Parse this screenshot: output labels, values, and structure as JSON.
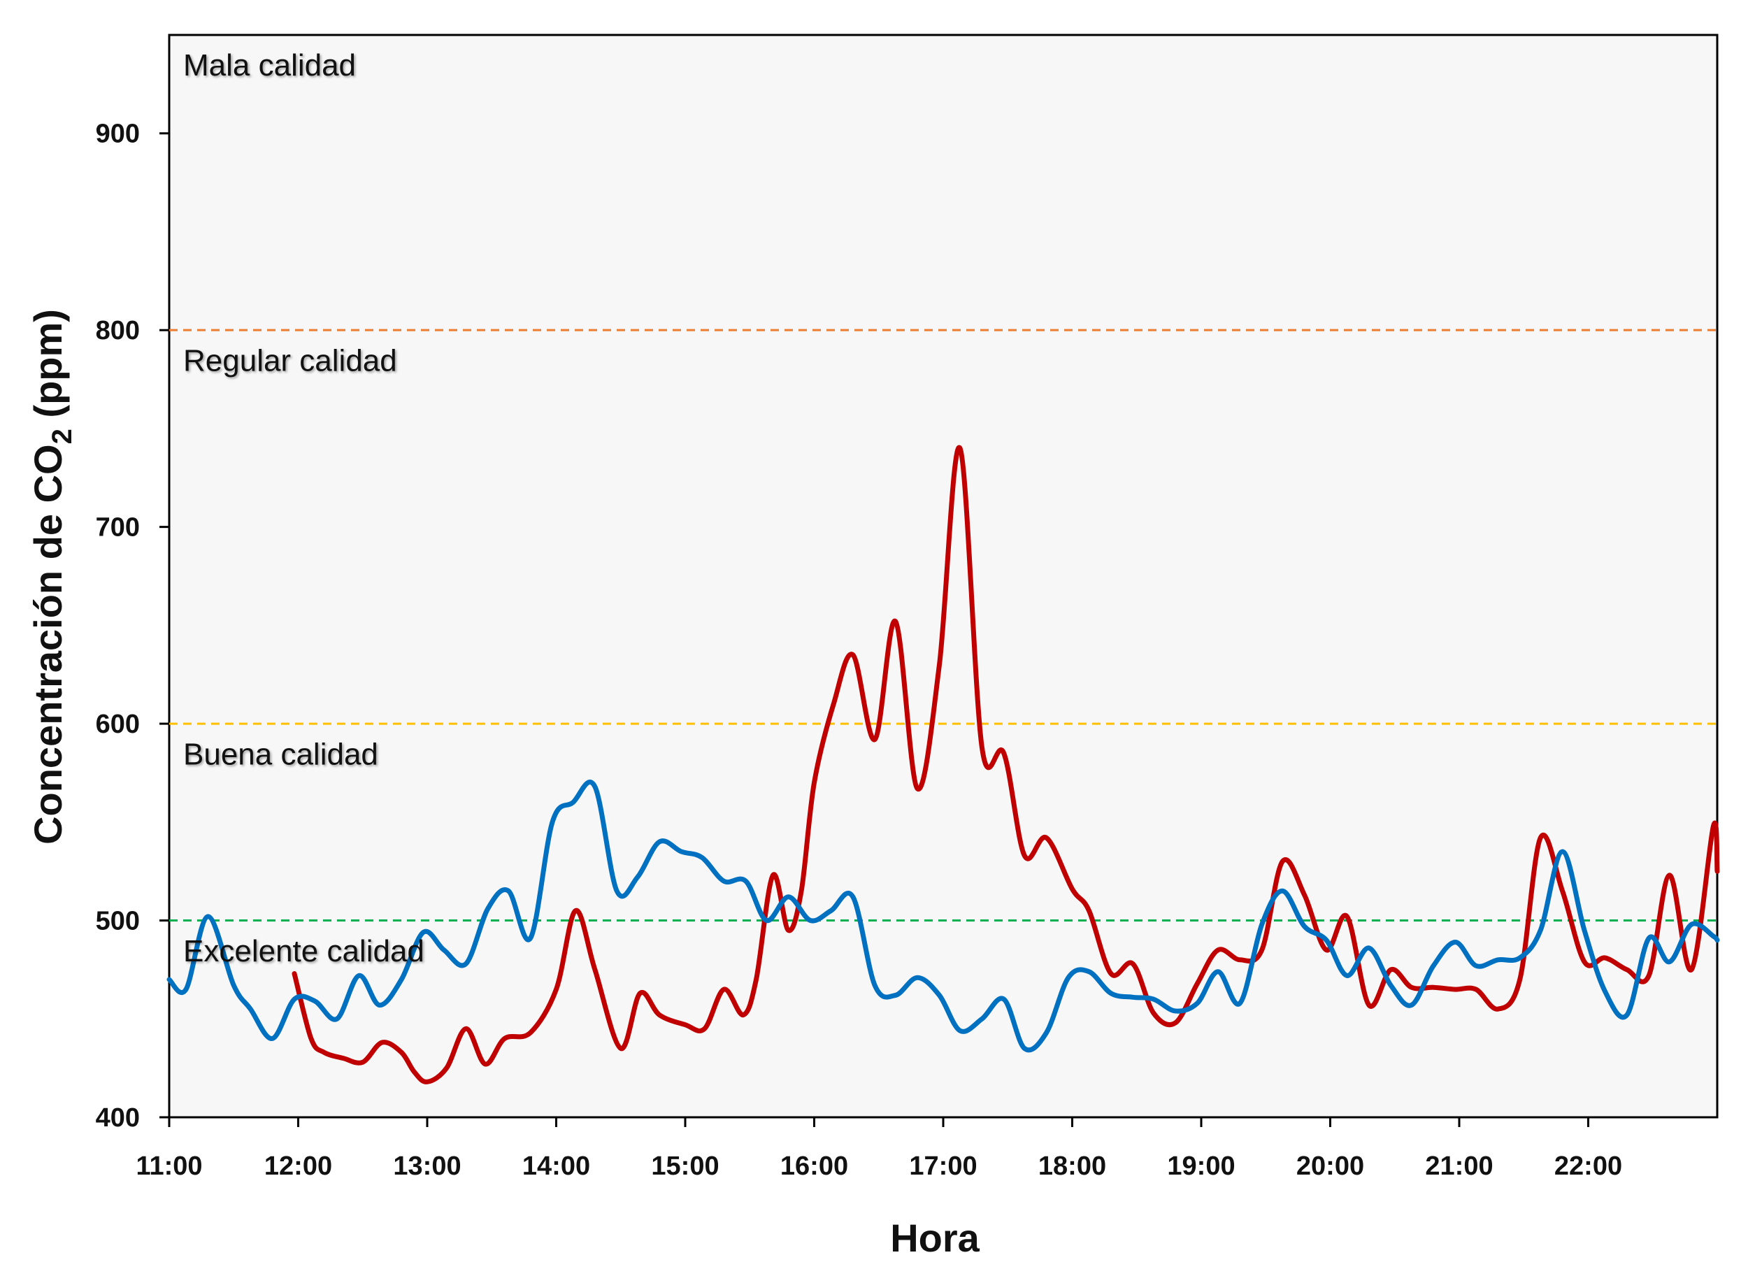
{
  "chart_data": {
    "type": "line",
    "xlabel": "Hora",
    "ylabel_parts": [
      "Concentración de CO",
      "2",
      " (ppm)"
    ],
    "x_tick_labels": [
      "11:00",
      "12:00",
      "13:00",
      "14:00",
      "15:00",
      "16:00",
      "17:00",
      "18:00",
      "19:00",
      "20:00",
      "21:00",
      "22:00"
    ],
    "x_range_hours": [
      11,
      23
    ],
    "ylim": [
      400,
      950
    ],
    "y_ticks": [
      400,
      500,
      600,
      700,
      800,
      900
    ],
    "grid": false,
    "plot_background": "#f7f7f7",
    "thresholds": [
      {
        "value": 800,
        "color": "#ed7d31",
        "style": "dashed"
      },
      {
        "value": 600,
        "color": "#ffc000",
        "style": "dashed"
      },
      {
        "value": 500,
        "color": "#00b050",
        "style": "dashed"
      }
    ],
    "zone_labels": [
      {
        "text": "Mala calidad",
        "value": 935
      },
      {
        "text": "Regular calidad",
        "value": 785
      },
      {
        "text": "Buena calidad",
        "value": 585
      },
      {
        "text": "Excelente calidad",
        "value": 485
      }
    ],
    "series": [
      {
        "color": "#c00000",
        "x": [
          11.97,
          12.1,
          12.2,
          12.35,
          12.5,
          12.65,
          12.8,
          12.9,
          13.0,
          13.15,
          13.3,
          13.45,
          13.6,
          13.8,
          14.0,
          14.15,
          14.3,
          14.5,
          14.65,
          14.8,
          15.0,
          15.15,
          15.3,
          15.45,
          15.55,
          15.68,
          15.8,
          15.9,
          16.0,
          16.15,
          16.3,
          16.47,
          16.63,
          16.8,
          16.97,
          17.13,
          17.3,
          17.47,
          17.63,
          17.8,
          18.0,
          18.13,
          18.3,
          18.47,
          18.63,
          18.8,
          18.97,
          19.13,
          19.3,
          19.47,
          19.63,
          19.8,
          19.97,
          20.13,
          20.3,
          20.47,
          20.63,
          20.8,
          20.97,
          21.13,
          21.3,
          21.47,
          21.63,
          21.8,
          21.97,
          22.13,
          22.3,
          22.47,
          22.63,
          22.8,
          22.97,
          23.0
        ],
        "values": [
          473,
          440,
          433,
          430,
          428,
          438,
          433,
          423,
          418,
          425,
          445,
          427,
          440,
          443,
          465,
          505,
          475,
          435,
          463,
          452,
          447,
          445,
          465,
          452,
          470,
          523,
          495,
          515,
          570,
          610,
          635,
          592,
          652,
          567,
          630,
          740,
          588,
          585,
          533,
          542,
          516,
          505,
          473,
          478,
          453,
          448,
          468,
          485,
          480,
          485,
          530,
          513,
          485,
          502,
          457,
          475,
          466,
          466,
          465,
          465,
          455,
          470,
          542,
          515,
          479,
          481,
          475,
          472,
          523,
          475,
          548,
          525
        ]
      },
      {
        "color": "#0070c0",
        "x": [
          11.0,
          11.13,
          11.3,
          11.5,
          11.63,
          11.8,
          11.97,
          12.13,
          12.3,
          12.47,
          12.63,
          12.8,
          12.97,
          13.13,
          13.3,
          13.47,
          13.63,
          13.8,
          13.97,
          14.13,
          14.3,
          14.47,
          14.63,
          14.8,
          14.97,
          15.13,
          15.3,
          15.47,
          15.63,
          15.8,
          15.97,
          16.13,
          16.3,
          16.47,
          16.63,
          16.8,
          16.97,
          17.13,
          17.3,
          17.47,
          17.63,
          17.8,
          17.97,
          18.13,
          18.3,
          18.47,
          18.63,
          18.8,
          18.97,
          19.13,
          19.3,
          19.47,
          19.63,
          19.8,
          19.97,
          20.13,
          20.3,
          20.47,
          20.63,
          20.8,
          20.97,
          21.13,
          21.3,
          21.47,
          21.63,
          21.8,
          21.97,
          22.13,
          22.3,
          22.47,
          22.63,
          22.8,
          22.97,
          23.0
        ],
        "values": [
          470,
          465,
          502,
          467,
          455,
          440,
          460,
          459,
          450,
          472,
          457,
          470,
          494,
          485,
          478,
          506,
          515,
          491,
          550,
          560,
          568,
          515,
          522,
          540,
          535,
          532,
          520,
          520,
          500,
          512,
          500,
          505,
          512,
          467,
          462,
          471,
          462,
          444,
          450,
          460,
          435,
          443,
          471,
          474,
          463,
          461,
          460,
          454,
          458,
          474,
          458,
          498,
          515,
          497,
          490,
          472,
          486,
          467,
          457,
          477,
          489,
          477,
          480,
          481,
          495,
          535,
          495,
          464,
          452,
          491,
          479,
          498,
          492,
          490
        ]
      }
    ]
  }
}
